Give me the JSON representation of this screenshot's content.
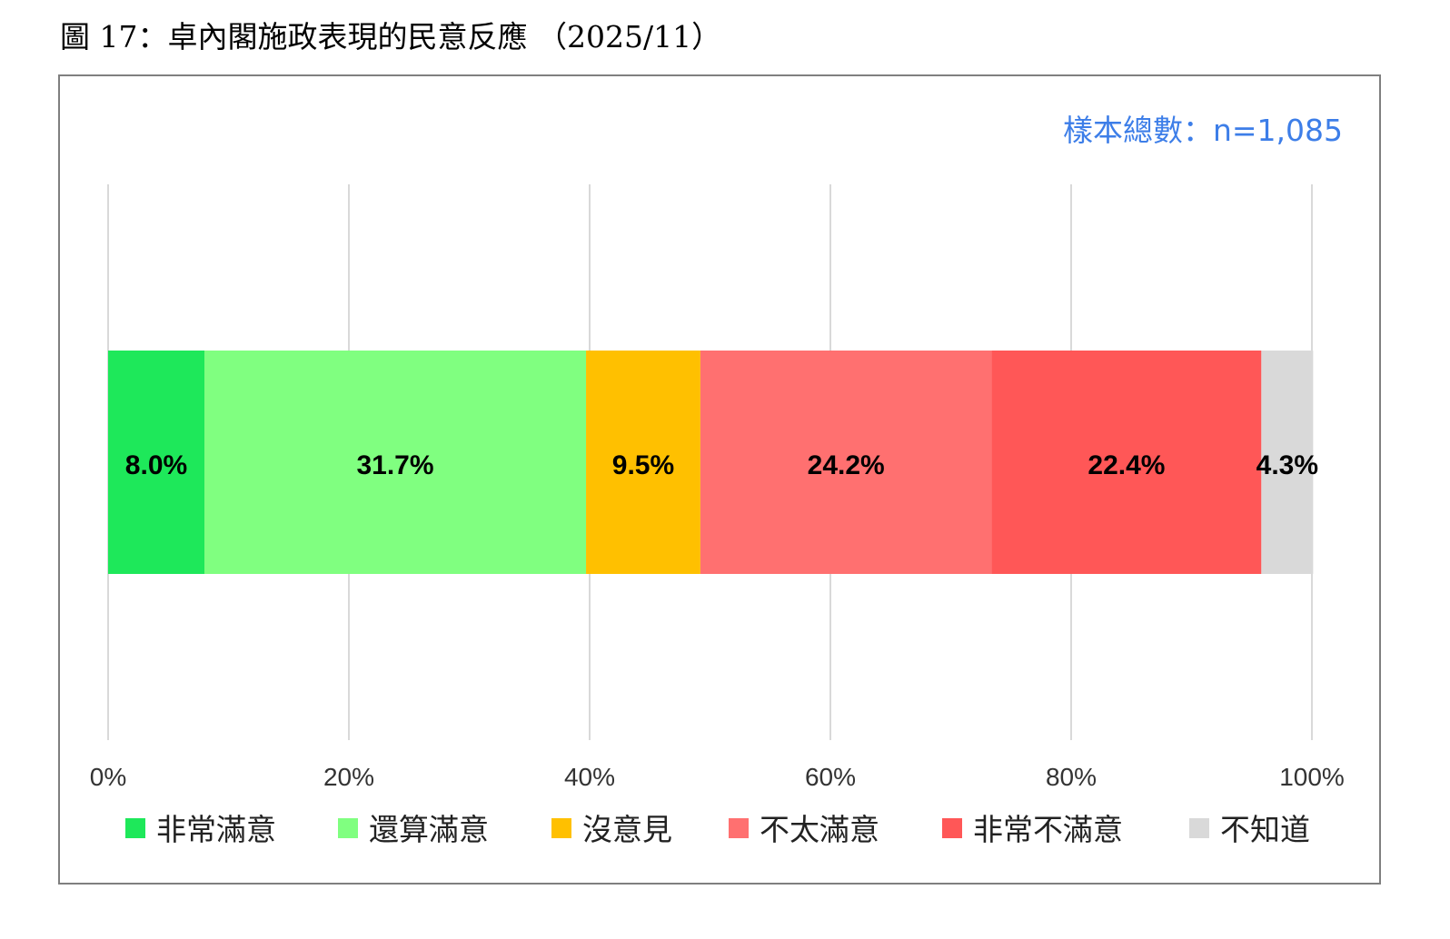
{
  "figure": {
    "title": "圖 17：卓內閣施政表現的民意反應 （2025/11）",
    "sample_note": "樣本總數：n=1,085"
  },
  "chart_data": {
    "type": "bar",
    "orientation": "horizontal",
    "stacked": true,
    "categories": [
      ""
    ],
    "series": [
      {
        "name": "非常滿意",
        "values": [
          8.0
        ],
        "label": "8.0%",
        "color": "#1ee85a"
      },
      {
        "name": "還算滿意",
        "values": [
          31.7
        ],
        "label": "31.7%",
        "color": "#80ff80"
      },
      {
        "name": "沒意見",
        "values": [
          9.5
        ],
        "label": "9.5%",
        "color": "#ffc000"
      },
      {
        "name": "不太滿意",
        "values": [
          24.2
        ],
        "label": "24.2%",
        "color": "#ff7070"
      },
      {
        "name": "非常不滿意",
        "values": [
          22.4
        ],
        "label": "22.4%",
        "color": "#ff5757"
      },
      {
        "name": "不知道",
        "values": [
          4.3
        ],
        "label": "4.3%",
        "color": "#d9d9d9"
      }
    ],
    "xlim": [
      0,
      100
    ],
    "xticks": [
      0,
      20,
      40,
      60,
      80,
      100
    ],
    "xtick_labels": [
      "0%",
      "20%",
      "40%",
      "60%",
      "80%",
      "100%"
    ],
    "grid": true,
    "legend": "bottom",
    "xlabel": "",
    "ylabel": ""
  }
}
